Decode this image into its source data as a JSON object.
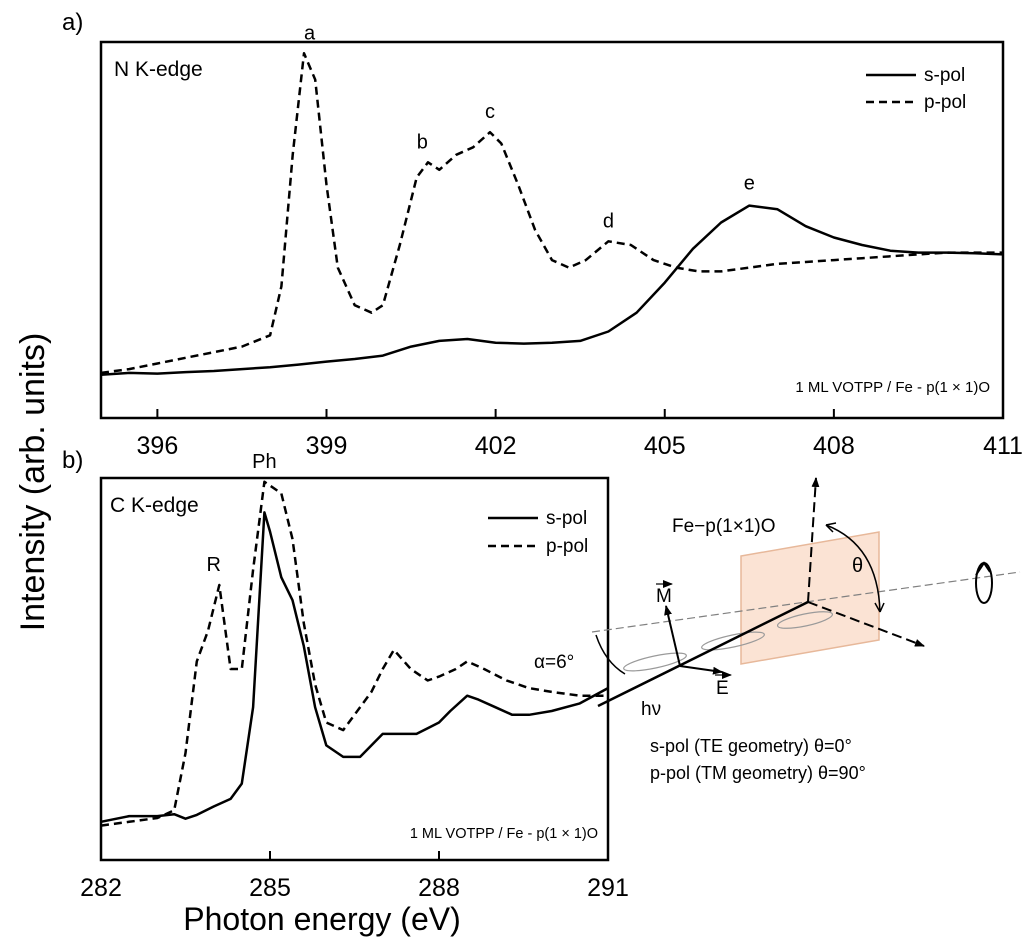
{
  "ylabel": "Intensity (arb. units)",
  "xlabel": "Photon energy (eV)",
  "colors": {
    "line": "#000000",
    "sample_plane": "#fbe3d4",
    "sample_edge": "#e7b89a",
    "beam_axis": "#808080"
  },
  "chart_data": [
    {
      "panel": "a)",
      "type": "line",
      "title": "N K-edge",
      "annotation": "1 ML VOTPP / Fe - p(1 × 1)O",
      "xlim": [
        395,
        411
      ],
      "ylim": [
        0,
        1
      ],
      "xticks": [
        "396",
        "399",
        "402",
        "405",
        "408",
        "411"
      ],
      "legend_position": "top-right",
      "grid": false,
      "series": [
        {
          "name": "s-pol",
          "style": "solid",
          "x": [
            395.0,
            395.5,
            396.0,
            396.5,
            397.0,
            397.5,
            398.0,
            398.5,
            399.0,
            399.5,
            400.0,
            400.5,
            401.0,
            401.5,
            402.0,
            402.5,
            403.0,
            403.5,
            404.0,
            404.5,
            405.0,
            405.5,
            406.0,
            406.5,
            407.0,
            407.5,
            408.0,
            408.5,
            409.0,
            409.5,
            410.0,
            410.5,
            411.0
          ],
          "y": [
            0.115,
            0.12,
            0.118,
            0.122,
            0.125,
            0.13,
            0.135,
            0.142,
            0.15,
            0.157,
            0.166,
            0.19,
            0.205,
            0.21,
            0.2,
            0.198,
            0.2,
            0.205,
            0.23,
            0.28,
            0.36,
            0.45,
            0.52,
            0.565,
            0.555,
            0.51,
            0.48,
            0.46,
            0.445,
            0.44,
            0.44,
            0.438,
            0.435
          ]
        },
        {
          "name": "p-pol",
          "style": "dashed",
          "x": [
            395.0,
            395.5,
            396.0,
            396.5,
            397.0,
            397.5,
            398.0,
            398.2,
            398.4,
            398.6,
            398.8,
            399.0,
            399.2,
            399.5,
            399.8,
            400.0,
            400.3,
            400.6,
            400.8,
            401.0,
            401.3,
            401.6,
            401.9,
            402.1,
            402.4,
            402.7,
            403.0,
            403.3,
            403.6,
            404.0,
            404.4,
            404.8,
            405.2,
            405.6,
            406.0,
            406.5,
            407.0,
            407.5,
            408.0,
            408.5,
            409.0,
            409.5,
            410.0,
            410.5,
            411.0
          ],
          "y": [
            0.12,
            0.13,
            0.145,
            0.16,
            0.175,
            0.19,
            0.22,
            0.35,
            0.7,
            0.97,
            0.9,
            0.62,
            0.4,
            0.3,
            0.28,
            0.3,
            0.46,
            0.64,
            0.68,
            0.66,
            0.7,
            0.72,
            0.76,
            0.73,
            0.62,
            0.5,
            0.42,
            0.4,
            0.42,
            0.47,
            0.46,
            0.42,
            0.4,
            0.39,
            0.39,
            0.4,
            0.41,
            0.415,
            0.42,
            0.425,
            0.43,
            0.435,
            0.44,
            0.44,
            0.44
          ]
        }
      ],
      "peak_labels": [
        {
          "text": "a",
          "x": 398.7,
          "y": 0.97
        },
        {
          "text": "b",
          "x": 400.7,
          "y": 0.68
        },
        {
          "text": "c",
          "x": 401.9,
          "y": 0.76
        },
        {
          "text": "d",
          "x": 404.0,
          "y": 0.47
        },
        {
          "text": "e",
          "x": 406.5,
          "y": 0.57
        }
      ]
    },
    {
      "panel": "b)",
      "type": "line",
      "title": "C K-edge",
      "annotation": "1 ML VOTPP / Fe - p(1 × 1)O",
      "xlim": [
        282,
        291
      ],
      "ylim": [
        0,
        1
      ],
      "xticks": [
        "282",
        "285",
        "288",
        "291"
      ],
      "legend_position": "top-right",
      "grid": false,
      "series": [
        {
          "name": "s-pol",
          "style": "solid",
          "x": [
            282.0,
            282.5,
            283.0,
            283.3,
            283.5,
            283.7,
            284.0,
            284.3,
            284.5,
            284.7,
            284.9,
            285.0,
            285.2,
            285.4,
            285.6,
            285.8,
            286.0,
            286.3,
            286.6,
            286.8,
            287.0,
            287.3,
            287.6,
            287.8,
            288.0,
            288.2,
            288.5,
            288.7,
            289.0,
            289.3,
            289.6,
            290.0,
            290.5,
            291.0
          ],
          "y": [
            0.1,
            0.115,
            0.115,
            0.12,
            0.108,
            0.118,
            0.14,
            0.16,
            0.2,
            0.4,
            0.91,
            0.86,
            0.74,
            0.68,
            0.56,
            0.4,
            0.3,
            0.27,
            0.27,
            0.3,
            0.33,
            0.33,
            0.33,
            0.345,
            0.36,
            0.39,
            0.43,
            0.42,
            0.4,
            0.38,
            0.38,
            0.39,
            0.41,
            0.45
          ]
        },
        {
          "name": "p-pol",
          "style": "dashed",
          "x": [
            282.0,
            282.5,
            283.0,
            283.3,
            283.5,
            283.7,
            283.9,
            284.1,
            284.3,
            284.5,
            284.7,
            284.9,
            285.0,
            285.2,
            285.4,
            285.6,
            285.8,
            286.0,
            286.3,
            286.5,
            286.8,
            287.0,
            287.2,
            287.5,
            287.8,
            288.0,
            288.3,
            288.5,
            288.8,
            289.2,
            289.6,
            290.0,
            290.5,
            291.0
          ],
          "y": [
            0.09,
            0.1,
            0.11,
            0.13,
            0.28,
            0.52,
            0.6,
            0.72,
            0.5,
            0.5,
            0.76,
            0.99,
            0.98,
            0.96,
            0.84,
            0.62,
            0.46,
            0.36,
            0.34,
            0.38,
            0.44,
            0.5,
            0.55,
            0.5,
            0.47,
            0.48,
            0.5,
            0.52,
            0.5,
            0.47,
            0.45,
            0.44,
            0.43,
            0.43
          ]
        }
      ],
      "peak_labels": [
        {
          "text": "R",
          "x": 284.0,
          "y": 0.72
        },
        {
          "text": "Ph",
          "x": 284.9,
          "y": 0.99
        }
      ]
    }
  ],
  "diagram": {
    "sample_label": "Fe−p(1×1)O",
    "theta": "θ",
    "alpha": "α=6°",
    "magnetization": "M",
    "field": "E",
    "photon": "hν",
    "spol_note": "s-pol (TE geometry) θ=0°",
    "ppol_note": "p-pol (TM geometry) θ=90°"
  }
}
